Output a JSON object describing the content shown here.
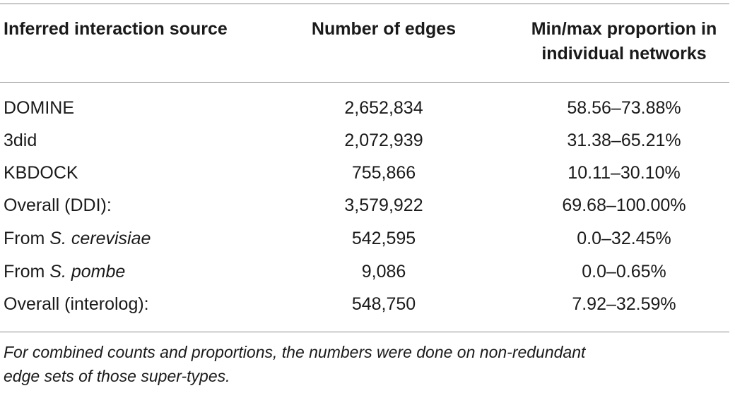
{
  "headers": {
    "source": "Inferred interaction source",
    "edges": "Number of edges",
    "proportion_line1": "Min/max proportion in",
    "proportion_line2": "individual networks"
  },
  "rows": [
    {
      "source_prefix": "DOMINE",
      "source_italic": "",
      "edges": "2,652,834",
      "proportion": "58.56–73.88%"
    },
    {
      "source_prefix": "3did",
      "source_italic": "",
      "edges": "2,072,939",
      "proportion": "31.38–65.21%"
    },
    {
      "source_prefix": "KBDOCK",
      "source_italic": "",
      "edges": "755,866",
      "proportion": "10.11–30.10%"
    },
    {
      "source_prefix": "Overall (DDI):",
      "source_italic": "",
      "edges": "3,579,922",
      "proportion": "69.68–100.00%"
    },
    {
      "source_prefix": "From ",
      "source_italic": "S. cerevisiae",
      "edges": "542,595",
      "proportion": "0.0–32.45%"
    },
    {
      "source_prefix": "From ",
      "source_italic": "S. pombe",
      "edges": "9,086",
      "proportion": "0.0–0.65%"
    },
    {
      "source_prefix": "Overall (interolog):",
      "source_italic": "",
      "edges": "548,750",
      "proportion": "7.92–32.59%"
    }
  ],
  "footnote": {
    "line1": "For combined counts and proportions, the numbers were done on non-redundant",
    "line2": "edge sets of those super-types."
  }
}
